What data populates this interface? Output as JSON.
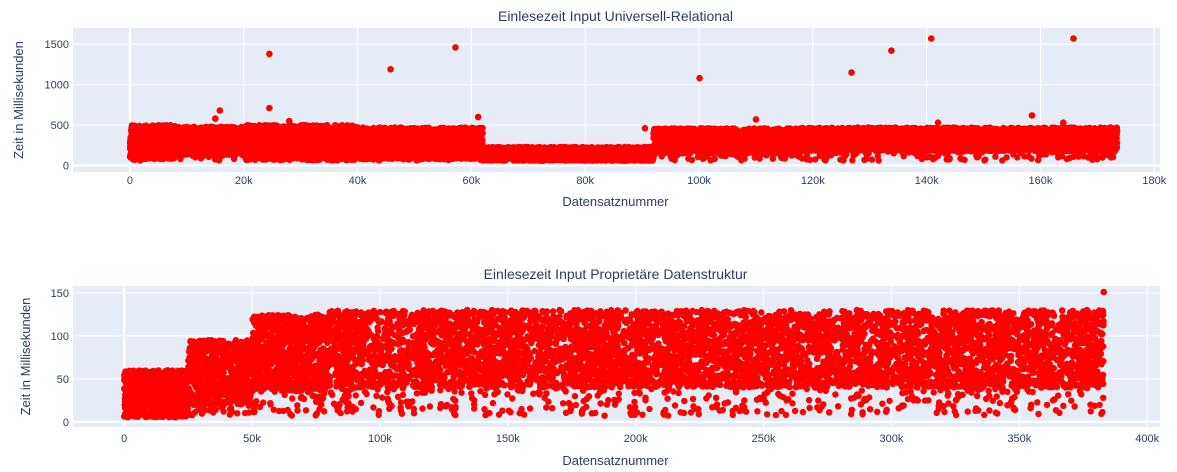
{
  "colors": {
    "marker": "#ff0000",
    "plot_bg": "#e5ecf6",
    "grid": "#ffffff",
    "text": "#2a3f5f"
  },
  "chart_data": [
    {
      "type": "scatter",
      "title": "Einlesezeit Input Universell-Relational",
      "xlabel": "Datensatznummer",
      "ylabel": "Zeit in Millisekunden",
      "xlim": [
        -10000,
        181000
      ],
      "ylim": [
        -80,
        1700
      ],
      "x_ticks": [
        0,
        20000,
        40000,
        60000,
        80000,
        100000,
        120000,
        140000,
        160000,
        180000
      ],
      "x_tick_labels": [
        "0",
        "20k",
        "40k",
        "60k",
        "80k",
        "100k",
        "120k",
        "140k",
        "160k",
        "180k"
      ],
      "y_ticks": [
        0,
        500,
        1000,
        1500
      ],
      "y_tick_labels": [
        "0",
        "500",
        "1000",
        "1500"
      ],
      "grid": true,
      "x_max": 173500,
      "bands": [
        {
          "x0": 0,
          "x1": 8000,
          "lo": 80,
          "hi": 500
        },
        {
          "x0": 8000,
          "x1": 20000,
          "lo": 130,
          "hi": 480
        },
        {
          "x0": 20000,
          "x1": 40000,
          "lo": 70,
          "hi": 500
        },
        {
          "x0": 40000,
          "x1": 62000,
          "lo": 80,
          "hi": 470
        },
        {
          "x0": 62000,
          "x1": 92000,
          "lo": 60,
          "hi": 230
        },
        {
          "x0": 92000,
          "x1": 118000,
          "lo": 150,
          "hi": 460
        },
        {
          "x0": 118000,
          "x1": 173500,
          "lo": 180,
          "hi": 470
        }
      ],
      "outliers": [
        {
          "x": 15000,
          "y": 580
        },
        {
          "x": 15800,
          "y": 680
        },
        {
          "x": 24500,
          "y": 710
        },
        {
          "x": 24500,
          "y": 1380
        },
        {
          "x": 28000,
          "y": 550
        },
        {
          "x": 45800,
          "y": 1190
        },
        {
          "x": 57200,
          "y": 1460
        },
        {
          "x": 61200,
          "y": 600
        },
        {
          "x": 90500,
          "y": 460
        },
        {
          "x": 100100,
          "y": 1080
        },
        {
          "x": 110000,
          "y": 570
        },
        {
          "x": 126800,
          "y": 1150
        },
        {
          "x": 133800,
          "y": 1420
        },
        {
          "x": 140800,
          "y": 1570
        },
        {
          "x": 142000,
          "y": 530
        },
        {
          "x": 158500,
          "y": 620
        },
        {
          "x": 165800,
          "y": 1570
        },
        {
          "x": 164000,
          "y": 530
        }
      ]
    },
    {
      "type": "scatter",
      "title": "Einlesezeit Input Proprietäre Datenstruktur",
      "xlabel": "Datensatznummer",
      "ylabel": "Zeit in Millisekunden",
      "xlim": [
        -20000,
        405000
      ],
      "ylim": [
        -6,
        158
      ],
      "x_ticks": [
        0,
        50000,
        100000,
        150000,
        200000,
        250000,
        300000,
        350000,
        400000
      ],
      "x_tick_labels": [
        "0",
        "50k",
        "100k",
        "150k",
        "200k",
        "250k",
        "300k",
        "350k",
        "400k"
      ],
      "y_ticks": [
        0,
        50,
        100,
        150
      ],
      "y_tick_labels": [
        "0",
        "50",
        "100",
        "150"
      ],
      "grid": true,
      "x_max": 383000,
      "bands": [
        {
          "x0": 0,
          "x1": 25000,
          "lo": 5,
          "hi": 60
        },
        {
          "x0": 25000,
          "x1": 50000,
          "lo": 20,
          "hi": 95
        },
        {
          "x0": 50000,
          "x1": 80000,
          "lo": 35,
          "hi": 125
        },
        {
          "x0": 80000,
          "x1": 383000,
          "lo": 40,
          "hi": 130
        }
      ],
      "outliers": [
        {
          "x": 383000,
          "y": 151
        }
      ]
    }
  ]
}
